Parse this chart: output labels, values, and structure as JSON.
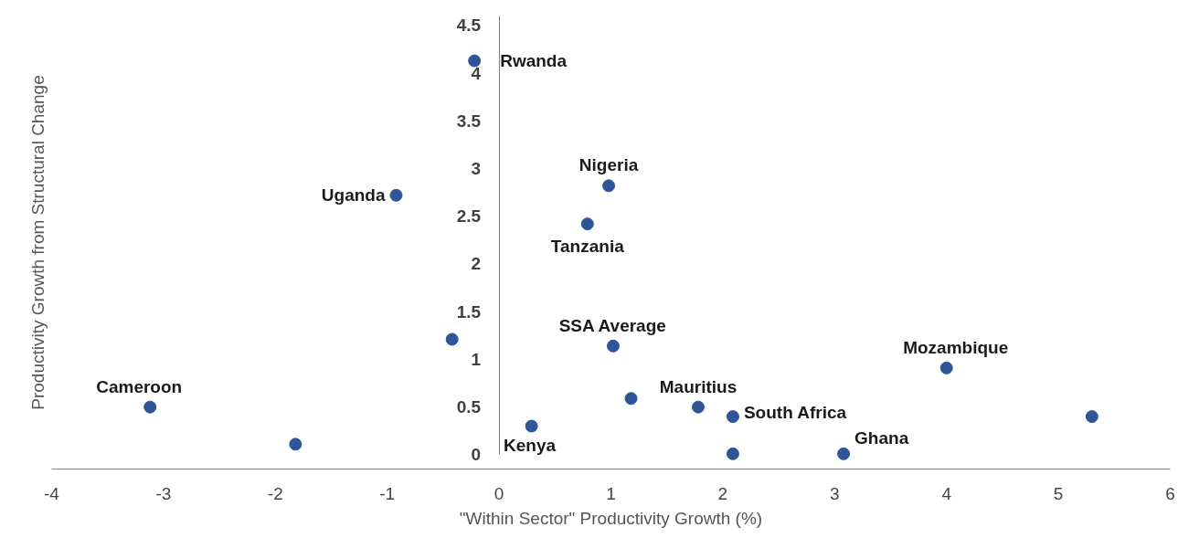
{
  "chart_data": {
    "type": "scatter",
    "xlabel": "\"Within Sector\" Productivity Growth (%)",
    "ylabel": "Productivity Growth from Structural Change",
    "series": [
      {
        "color": "#2f5597",
        "x": [
          -0.22,
          -0.92,
          0.98,
          0.79,
          -0.42,
          1.02,
          4.0,
          -3.12,
          1.18,
          1.78,
          2.09,
          5.3,
          0.29,
          -1.82,
          2.09,
          3.08
        ],
        "values": [
          4.13,
          2.72,
          2.82,
          2.42,
          1.21,
          1.14,
          0.91,
          0.5,
          0.59,
          0.5,
          0.4,
          0.4,
          0.3,
          0.11,
          0.01,
          0.01
        ]
      }
    ],
    "annotations": [
      {
        "text": "Rwanda",
        "x": -0.22,
        "y": 4.13
      },
      {
        "text": "Uganda",
        "x": -0.92,
        "y": 2.72
      },
      {
        "text": "Nigeria",
        "x": 0.98,
        "y": 2.82
      },
      {
        "text": "Tanzania",
        "x": 0.79,
        "y": 2.42
      },
      {
        "text": "SSA Average",
        "x": 1.02,
        "y": 1.14
      },
      {
        "text": "Mozambique",
        "x": 4.0,
        "y": 0.91
      },
      {
        "text": "Cameroon",
        "x": -3.12,
        "y": 0.5
      },
      {
        "text": "Mauritius",
        "x": 1.78,
        "y": 0.5
      },
      {
        "text": "South Africa",
        "x": 2.09,
        "y": 0.4
      },
      {
        "text": "Kenya",
        "x": 0.29,
        "y": 0.3
      },
      {
        "text": "Ghana",
        "x": 3.08,
        "y": 0.01
      }
    ],
    "xlim": [
      -4,
      6
    ],
    "ylim": [
      -0.15,
      4.6
    ],
    "xticks": [
      -4,
      -3,
      -2,
      -1,
      0,
      1,
      2,
      3,
      4,
      5,
      6
    ],
    "yticks": [
      0,
      0.5,
      1,
      1.5,
      2,
      2.5,
      3,
      3.5,
      4,
      4.5
    ],
    "grid": false,
    "marker": "circle"
  }
}
